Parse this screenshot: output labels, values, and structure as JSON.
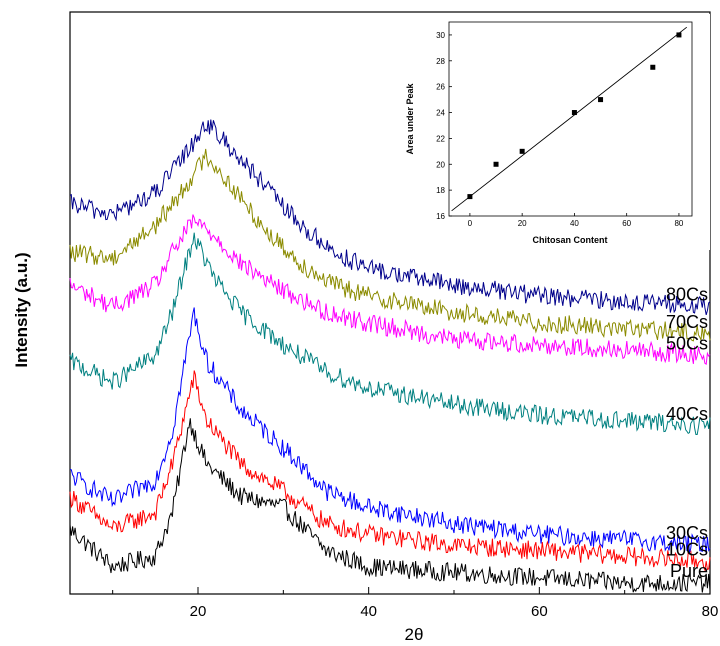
{
  "chart_data": [
    {
      "type": "line",
      "title": "",
      "xlabel": "2θ",
      "ylabel": "Intensity (a.u.)",
      "xlim": [
        5,
        80
      ],
      "xticks": [
        20,
        40,
        60,
        80
      ],
      "yticks": [],
      "grid": false,
      "legend": "none",
      "series": [
        {
          "name": "Pure",
          "color": "#000000",
          "values": [
            {
              "x": 5,
              "y": 0.12
            },
            {
              "x": 10,
              "y": 0.05
            },
            {
              "x": 15,
              "y": 0.07
            },
            {
              "x": 17,
              "y": 0.15
            },
            {
              "x": 19,
              "y": 0.32
            },
            {
              "x": 21,
              "y": 0.24
            },
            {
              "x": 25,
              "y": 0.18
            },
            {
              "x": 30,
              "y": 0.16
            },
            {
              "x": 35,
              "y": 0.08
            },
            {
              "x": 40,
              "y": 0.05
            },
            {
              "x": 50,
              "y": 0.04
            },
            {
              "x": 60,
              "y": 0.03
            },
            {
              "x": 70,
              "y": 0.02
            },
            {
              "x": 80,
              "y": 0.02
            }
          ]
        },
        {
          "name": "10Cs",
          "color": "#ff0000",
          "values": [
            {
              "x": 5,
              "y": 0.18
            },
            {
              "x": 10,
              "y": 0.12
            },
            {
              "x": 15,
              "y": 0.15
            },
            {
              "x": 17,
              "y": 0.24
            },
            {
              "x": 19.5,
              "y": 0.4
            },
            {
              "x": 21,
              "y": 0.32
            },
            {
              "x": 25,
              "y": 0.24
            },
            {
              "x": 30,
              "y": 0.19
            },
            {
              "x": 35,
              "y": 0.13
            },
            {
              "x": 40,
              "y": 0.11
            },
            {
              "x": 50,
              "y": 0.09
            },
            {
              "x": 60,
              "y": 0.08
            },
            {
              "x": 70,
              "y": 0.07
            },
            {
              "x": 80,
              "y": 0.06
            }
          ]
        },
        {
          "name": "30Cs",
          "color": "#0000ff",
          "values": [
            {
              "x": 5,
              "y": 0.22
            },
            {
              "x": 10,
              "y": 0.17
            },
            {
              "x": 15,
              "y": 0.21
            },
            {
              "x": 17,
              "y": 0.3
            },
            {
              "x": 19.5,
              "y": 0.52
            },
            {
              "x": 21,
              "y": 0.43
            },
            {
              "x": 25,
              "y": 0.34
            },
            {
              "x": 30,
              "y": 0.27
            },
            {
              "x": 35,
              "y": 0.19
            },
            {
              "x": 40,
              "y": 0.16
            },
            {
              "x": 50,
              "y": 0.13
            },
            {
              "x": 60,
              "y": 0.11
            },
            {
              "x": 70,
              "y": 0.1
            },
            {
              "x": 80,
              "y": 0.09
            }
          ]
        },
        {
          "name": "40Cs",
          "color": "#008080",
          "values": [
            {
              "x": 5,
              "y": 0.43
            },
            {
              "x": 10,
              "y": 0.39
            },
            {
              "x": 15,
              "y": 0.44
            },
            {
              "x": 17,
              "y": 0.52
            },
            {
              "x": 19.5,
              "y": 0.66
            },
            {
              "x": 22,
              "y": 0.58
            },
            {
              "x": 25,
              "y": 0.52
            },
            {
              "x": 30,
              "y": 0.46
            },
            {
              "x": 35,
              "y": 0.41
            },
            {
              "x": 40,
              "y": 0.38
            },
            {
              "x": 50,
              "y": 0.35
            },
            {
              "x": 60,
              "y": 0.33
            },
            {
              "x": 70,
              "y": 0.32
            },
            {
              "x": 80,
              "y": 0.31
            }
          ]
        },
        {
          "name": "50Cs",
          "color": "#ff00ff",
          "values": [
            {
              "x": 5,
              "y": 0.57
            },
            {
              "x": 10,
              "y": 0.53
            },
            {
              "x": 15,
              "y": 0.57
            },
            {
              "x": 17,
              "y": 0.63
            },
            {
              "x": 19.5,
              "y": 0.69
            },
            {
              "x": 22,
              "y": 0.66
            },
            {
              "x": 25,
              "y": 0.61
            },
            {
              "x": 30,
              "y": 0.56
            },
            {
              "x": 35,
              "y": 0.52
            },
            {
              "x": 40,
              "y": 0.5
            },
            {
              "x": 50,
              "y": 0.47
            },
            {
              "x": 60,
              "y": 0.46
            },
            {
              "x": 70,
              "y": 0.45
            },
            {
              "x": 80,
              "y": 0.44
            }
          ]
        },
        {
          "name": "70Cs",
          "color": "#8b8b00",
          "values": [
            {
              "x": 5,
              "y": 0.63
            },
            {
              "x": 10,
              "y": 0.62
            },
            {
              "x": 15,
              "y": 0.68
            },
            {
              "x": 18,
              "y": 0.74
            },
            {
              "x": 21,
              "y": 0.81
            },
            {
              "x": 24,
              "y": 0.75
            },
            {
              "x": 28,
              "y": 0.67
            },
            {
              "x": 32,
              "y": 0.61
            },
            {
              "x": 36,
              "y": 0.57
            },
            {
              "x": 40,
              "y": 0.55
            },
            {
              "x": 50,
              "y": 0.52
            },
            {
              "x": 60,
              "y": 0.5
            },
            {
              "x": 70,
              "y": 0.49
            },
            {
              "x": 80,
              "y": 0.48
            }
          ]
        },
        {
          "name": "80Cs",
          "color": "#00008b",
          "values": [
            {
              "x": 5,
              "y": 0.72
            },
            {
              "x": 10,
              "y": 0.7
            },
            {
              "x": 15,
              "y": 0.74
            },
            {
              "x": 18,
              "y": 0.8
            },
            {
              "x": 21,
              "y": 0.87
            },
            {
              "x": 24,
              "y": 0.82
            },
            {
              "x": 28,
              "y": 0.75
            },
            {
              "x": 32,
              "y": 0.68
            },
            {
              "x": 36,
              "y": 0.63
            },
            {
              "x": 40,
              "y": 0.6
            },
            {
              "x": 50,
              "y": 0.57
            },
            {
              "x": 60,
              "y": 0.55
            },
            {
              "x": 70,
              "y": 0.54
            },
            {
              "x": 80,
              "y": 0.53
            }
          ]
        }
      ]
    },
    {
      "type": "scatter",
      "title": "",
      "xlabel": "Chitosan Content",
      "ylabel": "Area under Peak",
      "xlim": [
        -8,
        85
      ],
      "ylim": [
        16,
        31
      ],
      "xticks": [
        0,
        20,
        40,
        60,
        80
      ],
      "yticks": [
        16,
        18,
        20,
        22,
        24,
        26,
        28,
        30
      ],
      "points": [
        {
          "x": 0,
          "y": 17.5
        },
        {
          "x": 10,
          "y": 20
        },
        {
          "x": 20,
          "y": 21
        },
        {
          "x": 40,
          "y": 24
        },
        {
          "x": 50,
          "y": 25
        },
        {
          "x": 70,
          "y": 27.5
        },
        {
          "x": 80,
          "y": 30
        }
      ],
      "fit_line": [
        {
          "x": -7,
          "y": 16.4
        },
        {
          "x": 83,
          "y": 30.6
        }
      ],
      "color": "#000000"
    }
  ]
}
